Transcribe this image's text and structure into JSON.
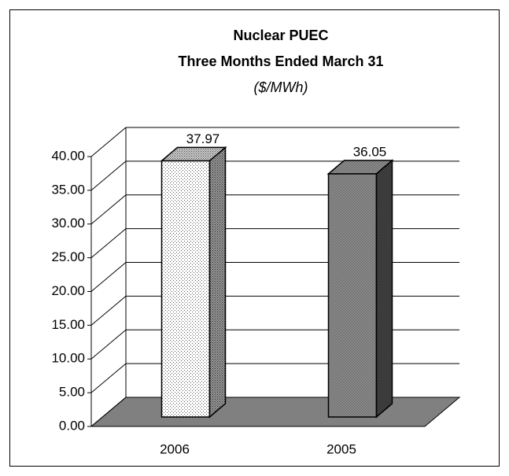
{
  "chart_data": {
    "type": "bar3d",
    "title": [
      "Nuclear PUEC",
      "Three Months Ended March 31"
    ],
    "subtitle": "($/MWh)",
    "categories": [
      "2006",
      "2005"
    ],
    "values": [
      37.97,
      36.05
    ],
    "ylim": [
      0,
      40
    ],
    "yticks": [
      {
        "value": 0,
        "label": "0.00"
      },
      {
        "value": 5,
        "label": "5.00"
      },
      {
        "value": 10,
        "label": "10.00"
      },
      {
        "value": 15,
        "label": "15.00"
      },
      {
        "value": 20,
        "label": "20.00"
      },
      {
        "value": 25,
        "label": "25.00"
      },
      {
        "value": 30,
        "label": "30.00"
      },
      {
        "value": 35,
        "label": "35.00"
      },
      {
        "value": 40,
        "label": "40.00"
      }
    ],
    "grid": true
  }
}
